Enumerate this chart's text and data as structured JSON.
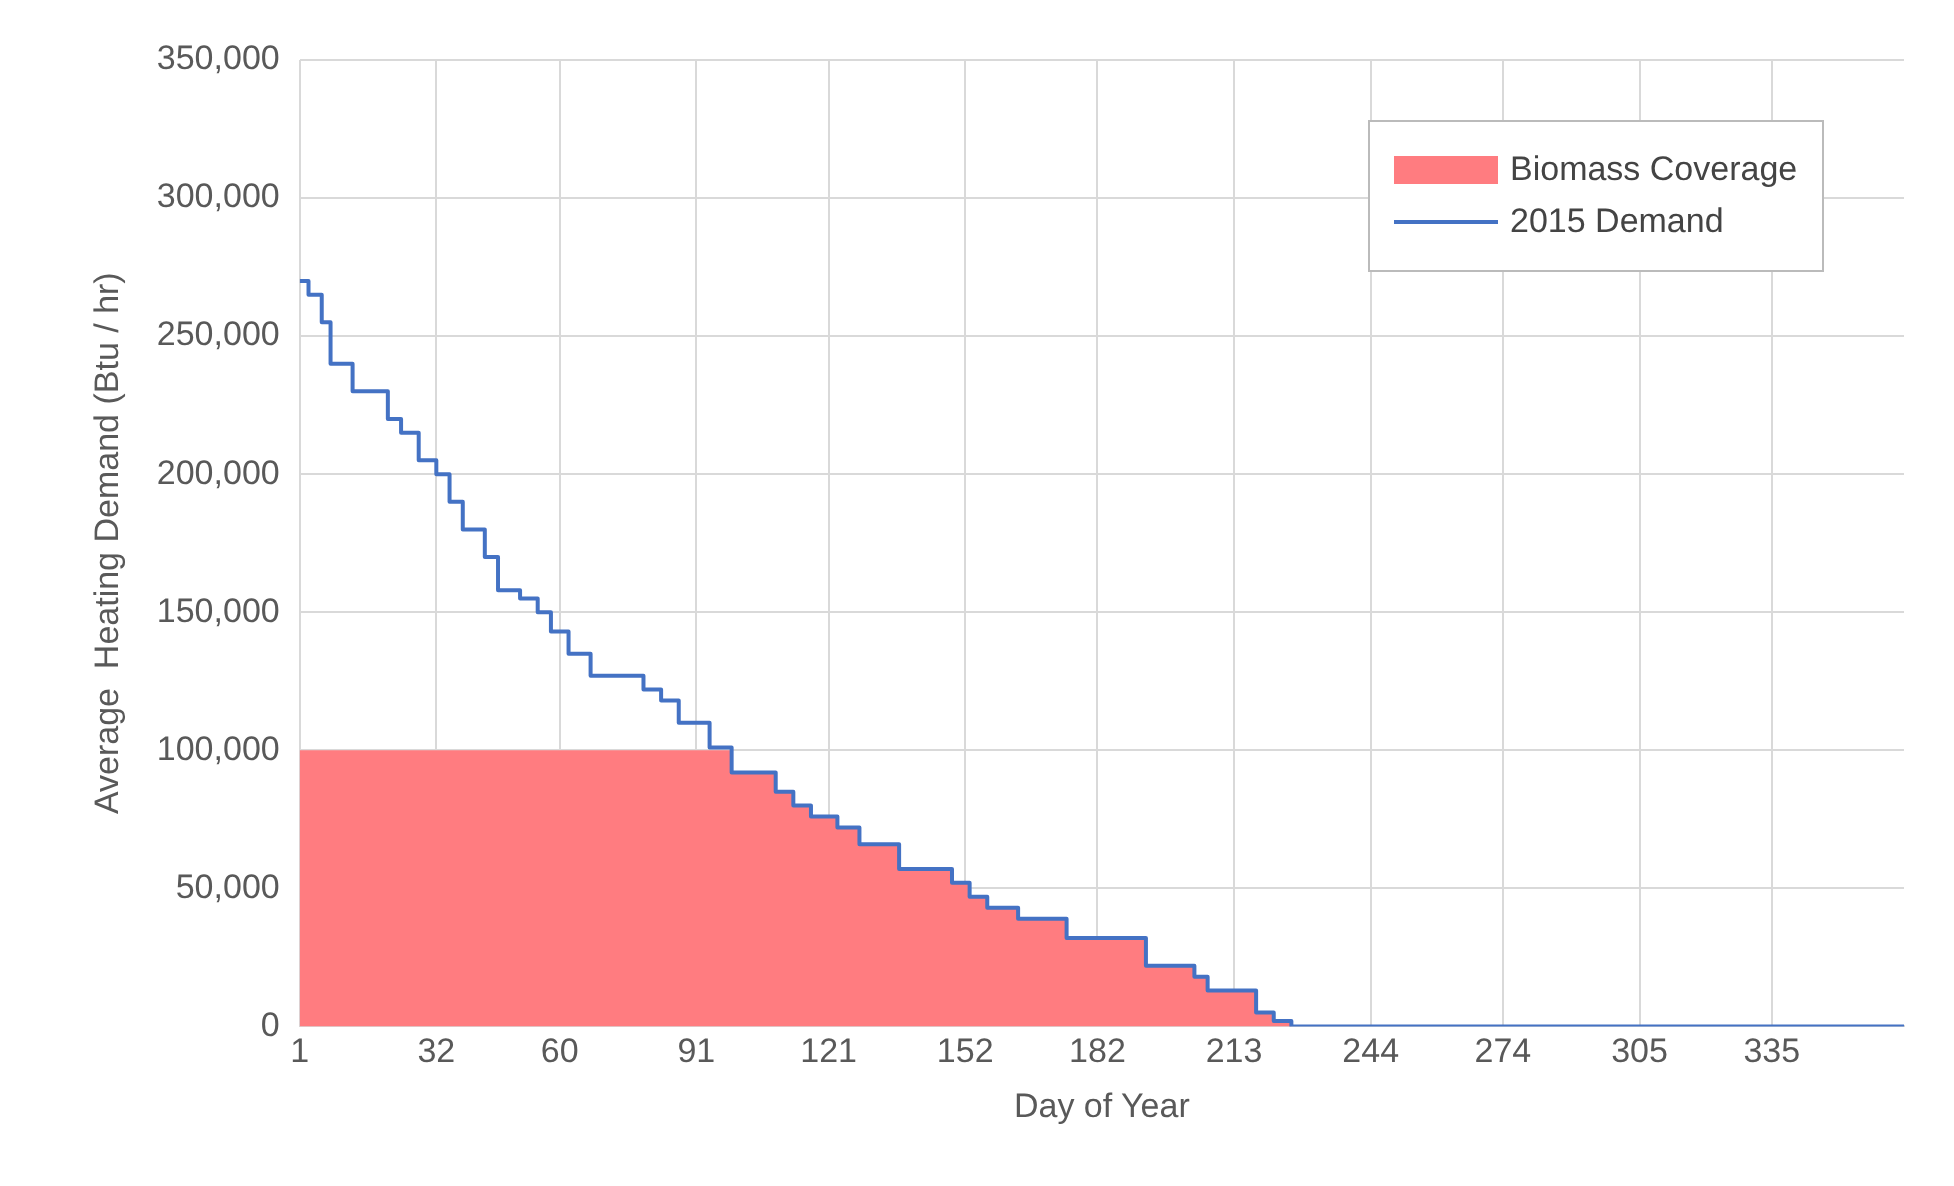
{
  "chart_data": {
    "type": "step",
    "xlabel": "Day of Year",
    "ylabel": "Average  Heating Demand (Btu / hr)",
    "xlim": [
      1,
      365
    ],
    "xticks": [
      1,
      32,
      60,
      91,
      121,
      152,
      182,
      213,
      244,
      274,
      305,
      335
    ],
    "ylim": [
      0,
      350000
    ],
    "yticks": [
      {
        "value": 0,
        "label": "0"
      },
      {
        "value": 50000,
        "label": "50,000"
      },
      {
        "value": 100000,
        "label": "100,000"
      },
      {
        "value": 150000,
        "label": "150,000"
      },
      {
        "value": 200000,
        "label": "200,000"
      },
      {
        "value": 250000,
        "label": "250,000"
      },
      {
        "value": 300000,
        "label": "300,000"
      },
      {
        "value": 350000,
        "label": "350,000"
      }
    ],
    "grid": true,
    "legend": "top right",
    "marker": "none",
    "line_style": "solid",
    "series": [
      {
        "name": "Biomass Coverage",
        "type": "area",
        "color": "#ff7c80",
        "x": [
          1,
          99,
          109,
          113,
          117,
          123,
          128,
          137,
          149,
          153,
          157,
          164,
          175,
          193,
          204,
          207,
          218,
          222,
          226,
          365
        ],
        "values": [
          100000,
          92000,
          85000,
          80000,
          76000,
          72000,
          66000,
          57000,
          52000,
          47000,
          43000,
          39000,
          32000,
          22000,
          18000,
          13000,
          5000,
          2000,
          0,
          0
        ]
      },
      {
        "name": "2015 Demand",
        "type": "step",
        "color": "#4472c4",
        "x": [
          1,
          3,
          6,
          8,
          13,
          21,
          24,
          28,
          32,
          35,
          38,
          43,
          46,
          51,
          55,
          58,
          62,
          67,
          79,
          83,
          87,
          94,
          99,
          109,
          113,
          117,
          123,
          128,
          137,
          149,
          153,
          157,
          164,
          175,
          193,
          204,
          207,
          218,
          222,
          226,
          365
        ],
        "values": [
          270000,
          265000,
          255000,
          240000,
          230000,
          220000,
          215000,
          205000,
          200000,
          190000,
          180000,
          170000,
          158000,
          155000,
          150000,
          143000,
          135000,
          127000,
          122000,
          118000,
          110000,
          101000,
          92000,
          85000,
          80000,
          76000,
          72000,
          66000,
          57000,
          52000,
          47000,
          43000,
          39000,
          32000,
          22000,
          18000,
          13000,
          5000,
          2000,
          0,
          0
        ]
      }
    ]
  }
}
